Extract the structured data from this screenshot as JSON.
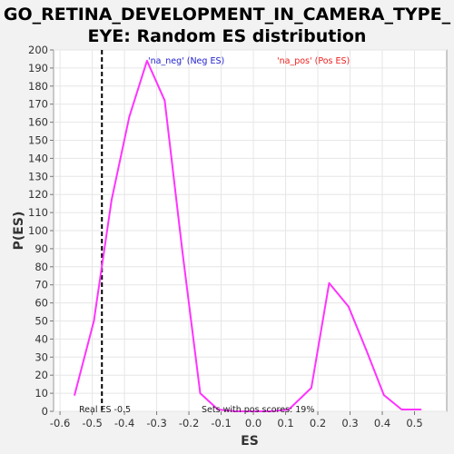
{
  "chart_data": {
    "type": "line",
    "title_line1": "GO_RETINA_DEVELOPMENT_IN_CAMERA_TYPE_",
    "title_line2": "EYE: Random ES distribution",
    "xlabel": "ES",
    "ylabel": "P(ES)",
    "xlim": [
      -0.62,
      0.6
    ],
    "ylim": [
      0,
      200
    ],
    "x_ticks": [
      -0.6,
      -0.5,
      -0.4,
      -0.3,
      -0.2,
      -0.1,
      0.0,
      0.1,
      0.2,
      0.3,
      0.4,
      0.5
    ],
    "x_tick_labels": [
      "-0.6",
      "-0.5",
      "-0.4",
      "-0.3",
      "-0.2",
      "-0.1",
      "0.0",
      "0.1",
      "0.2",
      "0.3",
      "0.4",
      "0.5"
    ],
    "y_ticks": [
      0,
      10,
      20,
      30,
      40,
      50,
      60,
      70,
      80,
      90,
      100,
      110,
      120,
      130,
      140,
      150,
      160,
      170,
      180,
      190,
      200
    ],
    "y_tick_labels": [
      "0",
      "10",
      "20",
      "30",
      "40",
      "50",
      "60",
      "70",
      "80",
      "90",
      "100",
      "110",
      "120",
      "130",
      "140",
      "150",
      "160",
      "170",
      "180",
      "190",
      "200"
    ],
    "grid": true,
    "series": [
      {
        "color": "#ff33ff",
        "x": [
          -0.555,
          -0.495,
          -0.44,
          -0.385,
          -0.33,
          -0.275,
          -0.22,
          -0.165,
          -0.11,
          -0.055,
          0.0,
          0.055,
          0.11,
          0.18,
          0.235,
          0.295,
          0.35,
          0.405,
          0.46,
          0.52
        ],
        "y": [
          9,
          50,
          117,
          163,
          194,
          172,
          88,
          10,
          1,
          0,
          0,
          0,
          1,
          13,
          71,
          58,
          34,
          9,
          1,
          1
        ]
      }
    ],
    "real_es": {
      "value": -0.47,
      "label": "Real ES -0.5",
      "color": "#000000"
    },
    "legend": {
      "placement": "top",
      "neg_label": "'na_neg' (Neg ES)",
      "neg_color": "#2222cc",
      "pos_label": "'na_pos' (Pos ES)",
      "pos_color": "#ee2222"
    },
    "pos_scores_note": "Sets with pos scores: 19%"
  }
}
